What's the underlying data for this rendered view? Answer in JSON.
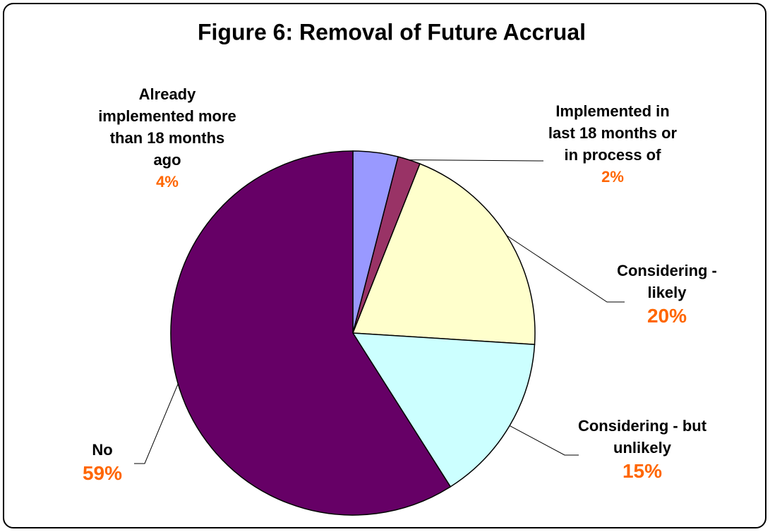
{
  "chart_data": {
    "type": "pie",
    "title": "Figure 6: Removal of Future Accrual",
    "categories": [
      "Already implemented more than 18 months ago",
      "Implemented in last 18 months or in process of",
      "Considering - likely",
      "Considering - but unlikely",
      "No"
    ],
    "values": [
      4,
      2,
      20,
      15,
      59
    ],
    "value_labels": [
      "4%",
      "2%",
      "20%",
      "15%",
      "59%"
    ],
    "colors": [
      "#9999ff",
      "#993366",
      "#ffffcc",
      "#ccffff",
      "#660066"
    ]
  }
}
